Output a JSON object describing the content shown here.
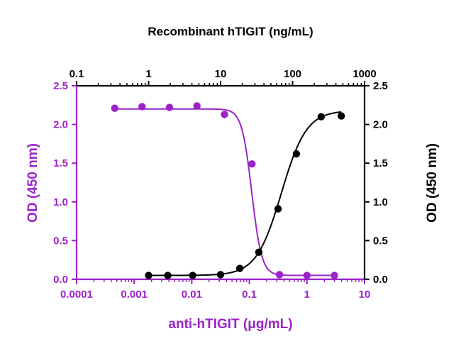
{
  "chart_data": {
    "type": "scatter",
    "title": "Recombinant hTIGIT (ng/mL)",
    "xlabel": "anti-hTIGIT (μg/mL)",
    "x2label": "Recombinant hTIGIT (ng/mL)",
    "ylabel": "OD (450 nm)",
    "y2label": "OD (450 nm)",
    "x_scale": "log",
    "x2_scale": "log",
    "xlim": [
      0.0001,
      10
    ],
    "x2lim": [
      0.1,
      1000
    ],
    "ylim": [
      0,
      2.5
    ],
    "y2lim": [
      0,
      2.5
    ],
    "x_ticks": [
      "0.0001",
      "0.001",
      "0.01",
      "0.1",
      "1",
      "10"
    ],
    "x2_ticks": [
      "0.1",
      "1",
      "10",
      "100",
      "1000"
    ],
    "y_ticks": [
      "0.0",
      "0.5",
      "1.0",
      "1.5",
      "2.0",
      "2.5"
    ],
    "y2_ticks": [
      "0.0",
      "0.5",
      "1.0",
      "1.5",
      "2.0",
      "2.5"
    ],
    "grid": false,
    "legend": "none",
    "colors": {
      "purple": "#9b23c9",
      "black": "#000000"
    },
    "series": [
      {
        "color": "purple",
        "x_axis": "bottom",
        "y_axis": "left",
        "x": [
          0.00046,
          0.00137,
          0.0041,
          0.0123,
          0.037,
          0.111,
          0.333,
          1.0,
          3.0
        ],
        "y": [
          2.21,
          2.23,
          2.22,
          2.24,
          2.13,
          1.49,
          0.06,
          0.05,
          0.05
        ],
        "fit": {
          "bottom": 0.05,
          "top": 2.2,
          "mid": 0.11,
          "slope": 5.0
        }
      },
      {
        "color": "black",
        "x_axis": "top",
        "y_axis": "right",
        "x": [
          1.0,
          1.85,
          4.1,
          10.0,
          18.5,
          34.0,
          63.0,
          113.0,
          250.0,
          475.0
        ],
        "y": [
          0.05,
          0.05,
          0.05,
          0.06,
          0.14,
          0.35,
          0.91,
          1.62,
          2.1,
          2.11
        ],
        "fit": {
          "bottom": 0.05,
          "top": 2.18,
          "mid": 70.0,
          "slope": 2.5
        }
      }
    ]
  }
}
